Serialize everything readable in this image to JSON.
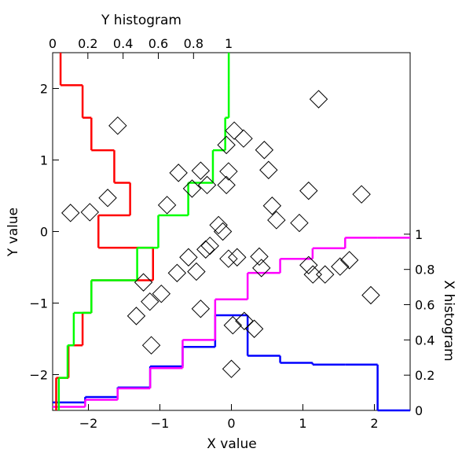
{
  "chart_data": {
    "type": "scatter",
    "xlabel": "X value",
    "ylabel": "Y value",
    "xlim": [
      -2.5,
      2.5
    ],
    "ylim": [
      -2.5,
      2.5
    ],
    "xticks": [
      {
        "value": -2,
        "label": "−2"
      },
      {
        "value": -1,
        "label": "−1"
      },
      0,
      1,
      2
    ],
    "yticks": [
      {
        "value": -2,
        "label": "−2"
      },
      {
        "value": -1,
        "label": "−1"
      },
      0,
      1,
      2
    ],
    "marker_color": "#000000",
    "x": [
      -1.59,
      1.22,
      0.04,
      0.17,
      -0.07,
      0.46,
      -0.74,
      -0.43,
      -0.04,
      0.52,
      -0.55,
      -0.34,
      -0.07,
      1.08,
      1.82,
      -1.73,
      -0.9,
      0.57,
      0.63,
      0.95,
      -2.25,
      -1.98,
      -0.18,
      -0.12,
      -0.3,
      -0.36,
      -0.6,
      -0.04,
      0.08,
      0.39,
      0.42,
      1.08,
      1.14,
      1.31,
      1.52,
      1.65,
      -0.49,
      -0.76,
      -1.23,
      -0.98,
      -1.14,
      1.95,
      -1.33,
      -0.43,
      0.18,
      0.32,
      0.02,
      -1.12,
      0.0
    ],
    "y": [
      1.48,
      1.85,
      1.41,
      1.3,
      1.21,
      1.14,
      0.82,
      0.85,
      0.84,
      0.86,
      0.6,
      0.65,
      0.65,
      0.57,
      0.52,
      0.47,
      0.37,
      0.36,
      0.16,
      0.12,
      0.26,
      0.27,
      0.09,
      0.0,
      -0.2,
      -0.25,
      -0.36,
      -0.38,
      -0.36,
      -0.35,
      -0.51,
      -0.47,
      -0.6,
      -0.6,
      -0.49,
      -0.4,
      -0.56,
      -0.58,
      -0.71,
      -0.87,
      -0.98,
      -0.89,
      -1.18,
      -1.08,
      -1.25,
      -1.36,
      -1.31,
      -1.59,
      -1.92
    ],
    "x_histogram": {
      "label": "X histogram",
      "lim": [
        0,
        2.03
      ],
      "ticks": [
        0,
        0.2,
        0.4,
        0.6,
        0.8,
        1
      ],
      "bins": [
        -2.5,
        -2.045,
        -1.591,
        -1.136,
        -0.682,
        -0.227,
        0.227,
        0.682,
        1.136,
        1.591,
        2.045,
        2.5
      ],
      "density": {
        "color": "#0000ff",
        "values": [
          0.045,
          0.076,
          0.13,
          0.25,
          0.36,
          0.54,
          0.31,
          0.27,
          0.26,
          0.26,
          0
        ]
      },
      "cumulative": {
        "color": "#ff00ff",
        "values": [
          0.02,
          0.06,
          0.125,
          0.24,
          0.4,
          0.63,
          0.78,
          0.86,
          0.92,
          0.98,
          0.98
        ]
      }
    },
    "y_histogram": {
      "label": "Y histogram",
      "lim": [
        0,
        2.03
      ],
      "ticks": [
        0,
        0.2,
        0.4,
        0.6,
        0.8,
        1
      ],
      "bins": [
        -2.5,
        -2.045,
        -1.591,
        -1.136,
        -0.682,
        -0.227,
        0.227,
        0.682,
        1.136,
        1.591,
        2.045,
        2.5
      ],
      "density": {
        "color": "#ff0000",
        "values": [
          0.02,
          0.09,
          0.17,
          0.22,
          0.57,
          0.26,
          0.44,
          0.35,
          0.22,
          0.17,
          0.045
        ]
      },
      "cumulative": {
        "color": "#00ff00",
        "values": [
          0.035,
          0.085,
          0.12,
          0.22,
          0.48,
          0.6,
          0.77,
          0.91,
          0.98,
          1.0,
          1.0
        ]
      }
    }
  }
}
